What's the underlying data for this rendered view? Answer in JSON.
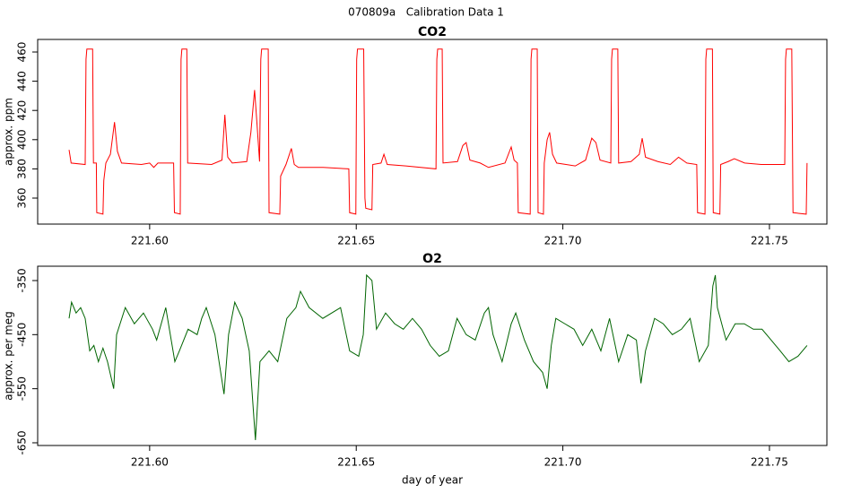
{
  "title": "070809a   Calibration Data 1",
  "chart_data": [
    {
      "type": "line",
      "title": "CO2",
      "ylabel": "approx. ppm",
      "xlim": [
        221.5729,
        221.7639
      ],
      "ylim": [
        342.2,
        468.6
      ],
      "xticks": [
        {
          "value": 221.6,
          "label": "221.60"
        },
        221.65,
        {
          "value": 221.7,
          "label": "221.70"
        },
        221.75
      ],
      "yticks": [
        360,
        380,
        400,
        420,
        440,
        460
      ],
      "x": [
        221.5805,
        221.581,
        221.5844,
        221.5846,
        221.5848,
        221.5862,
        221.5864,
        221.5871,
        221.5872,
        221.5887,
        221.5889,
        221.5894,
        221.5905,
        221.5915,
        221.5922,
        221.5932,
        221.598,
        221.6,
        221.601,
        221.602,
        221.6058,
        221.606,
        221.6074,
        221.6076,
        221.6078,
        221.609,
        221.6092,
        221.615,
        221.6175,
        221.6182,
        221.6189,
        221.62,
        221.6235,
        221.6245,
        221.6254,
        221.626,
        221.6266,
        221.6269,
        221.6271,
        221.6287,
        221.6289,
        221.6315,
        221.6317,
        221.633,
        221.6343,
        221.635,
        221.636,
        221.642,
        221.6482,
        221.6484,
        221.6499,
        221.6501,
        221.6503,
        221.6518,
        221.6521,
        221.6523,
        221.6538,
        221.654,
        221.656,
        221.6567,
        221.6575,
        221.662,
        221.6693,
        221.6695,
        221.6697,
        221.6708,
        221.671,
        221.6745,
        221.6758,
        221.6766,
        221.6775,
        221.68,
        221.682,
        221.686,
        221.6875,
        221.6882,
        221.689,
        221.6892,
        221.6921,
        221.6923,
        221.6925,
        221.6938,
        221.694,
        221.6953,
        221.6955,
        221.6962,
        221.6968,
        221.6975,
        221.6985,
        221.703,
        221.7055,
        221.707,
        221.708,
        221.709,
        221.7116,
        221.7118,
        221.712,
        221.7133,
        221.7135,
        221.7165,
        221.7185,
        221.7192,
        221.72,
        221.723,
        221.726,
        221.728,
        221.73,
        221.7324,
        221.7326,
        221.7344,
        221.7346,
        221.7348,
        221.7362,
        221.7364,
        221.738,
        221.7382,
        221.74,
        221.7415,
        221.744,
        221.748,
        221.7537,
        221.7539,
        221.7541,
        221.7554,
        221.7557,
        221.7589,
        221.7591
      ],
      "series": [
        {
          "color": "#ff0000",
          "values": [
            393,
            384,
            383,
            455,
            462,
            462,
            384,
            384,
            350,
            349,
            372,
            384,
            390,
            412,
            392,
            384,
            383,
            384,
            381,
            384,
            384,
            350,
            349,
            455,
            462,
            462,
            384,
            383,
            386,
            417,
            388,
            384,
            385,
            405,
            434,
            410,
            385,
            455,
            462,
            462,
            350,
            349,
            375,
            383,
            394,
            383,
            381,
            381,
            380,
            350,
            349,
            455,
            462,
            462,
            360,
            353,
            352,
            383,
            384,
            390,
            383,
            382,
            380,
            455,
            462,
            462,
            384,
            385,
            396,
            398,
            386,
            384,
            381,
            384,
            395,
            386,
            384,
            350,
            349,
            455,
            462,
            462,
            350,
            349,
            384,
            400,
            405,
            390,
            384,
            382,
            386,
            401,
            398,
            386,
            384,
            455,
            462,
            462,
            384,
            385,
            390,
            401,
            388,
            385,
            383,
            388,
            384,
            383,
            350,
            349,
            455,
            462,
            462,
            350,
            349,
            383,
            385,
            387,
            384,
            383,
            383,
            455,
            462,
            462,
            350,
            349,
            384
          ]
        }
      ]
    },
    {
      "type": "line",
      "title": "O2",
      "ylabel": "approx. per meg",
      "xlabel": "day of year",
      "xlim": [
        221.5729,
        221.7639
      ],
      "ylim": [
        -655,
        -323.5
      ],
      "xticks": [
        {
          "value": 221.6,
          "label": "221.60"
        },
        221.65,
        {
          "value": 221.7,
          "label": "221.70"
        },
        221.75
      ],
      "yticks": [
        -350,
        -450,
        -550,
        -650
      ],
      "x": [
        221.5805,
        221.5811,
        221.5822,
        221.5833,
        221.5844,
        221.5855,
        221.5865,
        221.5876,
        221.5887,
        221.5898,
        221.5913,
        221.592,
        221.5941,
        221.5963,
        221.5985,
        221.6007,
        221.6017,
        221.6039,
        221.6061,
        221.6072,
        221.6093,
        221.6115,
        221.6126,
        221.6137,
        221.6158,
        221.618,
        221.6191,
        221.6206,
        221.6224,
        221.6241,
        221.6256,
        221.6267,
        221.6289,
        221.631,
        221.6332,
        221.6354,
        221.6365,
        221.6386,
        221.6419,
        221.6462,
        221.6484,
        221.6506,
        221.6517,
        221.6525,
        221.6538,
        221.6549,
        221.6571,
        221.6593,
        221.6614,
        221.6636,
        221.6658,
        221.6679,
        221.6701,
        221.6723,
        221.6744,
        221.6766,
        221.6788,
        221.681,
        221.682,
        221.6831,
        221.6853,
        221.6875,
        221.6886,
        221.6907,
        221.6929,
        221.6951,
        221.6962,
        221.6972,
        221.6983,
        221.7005,
        221.7027,
        221.7048,
        221.707,
        221.7092,
        221.7113,
        221.7135,
        221.7157,
        221.7178,
        221.7189,
        221.72,
        221.7222,
        221.7243,
        221.7265,
        221.7287,
        221.7308,
        221.733,
        221.7352,
        221.7363,
        221.7369,
        221.7374,
        221.7395,
        221.7417,
        221.7439,
        221.7461,
        221.7482,
        221.7504,
        221.7526,
        221.7547,
        221.7569,
        221.7591
      ],
      "series": [
        {
          "color": "#006400",
          "values": [
            -420,
            -390,
            -410,
            -400,
            -420,
            -480,
            -470,
            -500,
            -475,
            -500,
            -550,
            -450,
            -400,
            -430,
            -410,
            -440,
            -460,
            -400,
            -500,
            -480,
            -440,
            -450,
            -420,
            -400,
            -450,
            -560,
            -450,
            -390,
            -420,
            -480,
            -645,
            -500,
            -480,
            -500,
            -420,
            -400,
            -370,
            -400,
            -420,
            -400,
            -480,
            -490,
            -450,
            -340,
            -350,
            -440,
            -410,
            -430,
            -440,
            -420,
            -440,
            -470,
            -490,
            -480,
            -420,
            -450,
            -460,
            -410,
            -400,
            -450,
            -500,
            -430,
            -410,
            -460,
            -500,
            -520,
            -550,
            -470,
            -420,
            -430,
            -440,
            -470,
            -440,
            -480,
            -420,
            -500,
            -450,
            -460,
            -540,
            -480,
            -420,
            -430,
            -450,
            -440,
            -420,
            -500,
            -470,
            -360,
            -340,
            -400,
            -460,
            -430,
            -430,
            -440,
            -440,
            -460,
            -480,
            -500,
            -490,
            -470
          ]
        }
      ]
    }
  ]
}
